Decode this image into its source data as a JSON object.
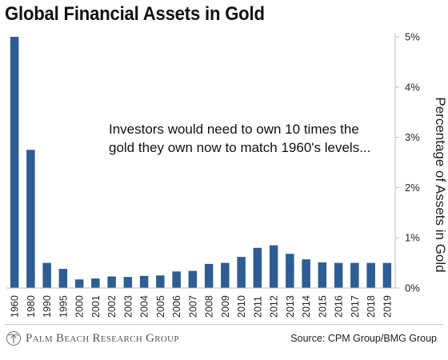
{
  "header": {
    "title": "Global Financial Assets in Gold"
  },
  "annotation": {
    "text": "Investors would need to own 10 times the gold they own now to match 1960's levels..."
  },
  "footer": {
    "brand": "Palm Beach Research Group",
    "source": "Source: CPM Group/BMG Group"
  },
  "colors": {
    "bar": "#2e5d94",
    "axis": "#bdbdbd"
  },
  "chart_data": {
    "type": "bar",
    "title": "Global Financial Assets in Gold",
    "xlabel": "",
    "ylabel": "Percentage of Assets in Gold",
    "y_axis_position": "right",
    "ylim": [
      0,
      5
    ],
    "yticks": [
      0,
      1,
      2,
      3,
      4,
      5
    ],
    "ytick_labels": [
      "0%",
      "1%",
      "2%",
      "3%",
      "4%",
      "5%"
    ],
    "grid": false,
    "categories": [
      "1960",
      "1980",
      "1990",
      "1995",
      "2000",
      "2001",
      "2002",
      "2003",
      "2004",
      "2005",
      "2006",
      "2007",
      "2008",
      "2009",
      "2010",
      "2011",
      "2012",
      "2013",
      "2014",
      "2015",
      "2016",
      "2017",
      "2018",
      "2019"
    ],
    "values": [
      5.0,
      2.75,
      0.5,
      0.38,
      0.17,
      0.19,
      0.23,
      0.22,
      0.24,
      0.25,
      0.33,
      0.34,
      0.48,
      0.5,
      0.62,
      0.8,
      0.85,
      0.68,
      0.57,
      0.51,
      0.5,
      0.5,
      0.5,
      0.5
    ]
  }
}
